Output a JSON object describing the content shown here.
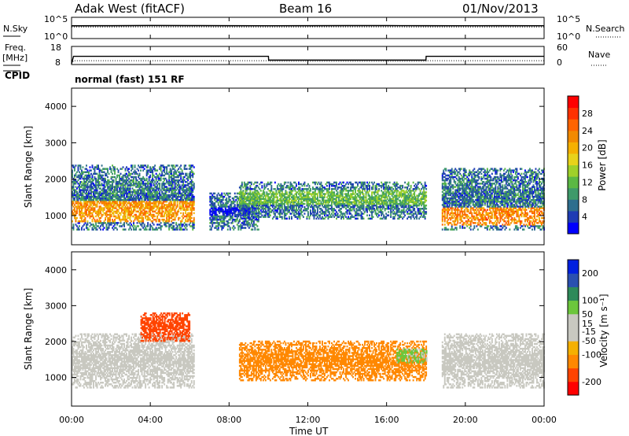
{
  "header": {
    "station": "Adak West (fitACF)",
    "beam": "Beam 16",
    "date": "01/Nov/2013"
  },
  "top_panels": {
    "nsky_label": "N.Sky",
    "nsky_ticks": [
      "10^5",
      "10^0"
    ],
    "nsearch_label": "N.Search",
    "nsearch_ticks": [
      "10^5",
      "10^0"
    ],
    "freq_label": "Freq.",
    "freq_unit": "[MHz]",
    "freq_ticks": [
      "18",
      "8"
    ],
    "nave_label": "Nave",
    "nave_ticks": [
      "60",
      "0"
    ],
    "cpid_label": "CPID",
    "cpid_text": "normal (fast) 151 RF"
  },
  "chart_data": [
    {
      "type": "line",
      "name": "noise-panel",
      "x": [
        0,
        2,
        4,
        6,
        8,
        10,
        12,
        14,
        16,
        18,
        20,
        22,
        24
      ],
      "series": [
        {
          "name": "N.Sky",
          "style": "solid",
          "values": [
            1200,
            1300,
            1500,
            1400,
            1300,
            1250,
            1300,
            1400,
            1350,
            1300,
            1250,
            1300,
            1250
          ]
        },
        {
          "name": "N.Search",
          "style": "dotted",
          "values": [
            600,
            600,
            650,
            620,
            600,
            600,
            610,
            630,
            620,
            600,
            600,
            610,
            600
          ]
        }
      ],
      "yscale": "log",
      "ylim": [
        1,
        100000
      ]
    },
    {
      "type": "line",
      "name": "freq-nave-panel",
      "x": [
        0,
        0.1,
        10,
        10.01,
        18,
        18.01,
        24
      ],
      "series": [
        {
          "name": "Freq.",
          "style": "solid",
          "values": [
            8,
            12.5,
            12.5,
            10.2,
            10.2,
            12.5,
            12.5
          ]
        },
        {
          "name": "Nave",
          "style": "dotted",
          "values": [
            0,
            11,
            11,
            9,
            9,
            11,
            11
          ]
        }
      ],
      "ylim_freq": [
        8,
        18
      ],
      "ylim_nave": [
        0,
        60
      ]
    },
    {
      "type": "heatmap",
      "name": "power-panel",
      "ylabel": "Slant Range [km]",
      "xlim": [
        0,
        24
      ],
      "ylim": [
        200,
        4500
      ],
      "yticks": [
        1000,
        2000,
        3000,
        4000
      ],
      "colorbar": {
        "label": "Power [dB]",
        "ticks": [
          4,
          8,
          12,
          16,
          20,
          24,
          28
        ],
        "range": [
          0,
          32
        ],
        "colors": [
          "#0000ff",
          "#1e3cb4",
          "#2e6e8e",
          "#3e9a6a",
          "#5bb844",
          "#9fd02a",
          "#e8d21a",
          "#f5b000",
          "#f28a00",
          "#ff6400",
          "#ff3200",
          "#ff0000"
        ]
      },
      "regions": [
        {
          "t": [
            0.0,
            6.2
          ],
          "r": [
            600,
            2400
          ],
          "peak_range": [
            800,
            1400
          ],
          "peak_power": 26
        },
        {
          "t": [
            7.0,
            9.5
          ],
          "r": [
            600,
            1600
          ],
          "peak_range": [
            1000,
            1200
          ],
          "peak_power": 6
        },
        {
          "t": [
            8.5,
            18.0
          ],
          "r": [
            900,
            1900
          ],
          "peak_range": [
            1300,
            1700
          ],
          "peak_power": 16
        },
        {
          "t": [
            18.8,
            24.0
          ],
          "r": [
            600,
            2300
          ],
          "peak_range": [
            700,
            1200
          ],
          "peak_power": 27
        }
      ]
    },
    {
      "type": "heatmap",
      "name": "velocity-panel",
      "ylabel": "Slant Range [km]",
      "xlabel": "Time UT",
      "xlim": [
        0,
        24
      ],
      "ylim": [
        200,
        4500
      ],
      "xticks": [
        "00:00",
        "04:00",
        "08:00",
        "12:00",
        "16:00",
        "20:00",
        "00:00"
      ],
      "yticks": [
        1000,
        2000,
        3000,
        4000
      ],
      "colorbar": {
        "label": "Velocity [m s⁻¹]",
        "ticks": [
          200,
          100,
          50,
          15,
          -15,
          -50,
          -100,
          -200
        ],
        "range": [
          -250,
          250
        ],
        "colors": [
          "#ff0000",
          "#ff4400",
          "#ff8800",
          "#f5b000",
          "#c8c8c0",
          "#c8c8c0",
          "#6cc63c",
          "#2e8a5a",
          "#2a50b0",
          "#0020e0"
        ]
      },
      "regions": [
        {
          "t": [
            0.0,
            6.2
          ],
          "r": [
            700,
            2200
          ],
          "velocity": 0
        },
        {
          "t": [
            3.5,
            6.0
          ],
          "r": [
            2000,
            2800
          ],
          "velocity": -180
        },
        {
          "t": [
            8.5,
            18.0
          ],
          "r": [
            900,
            2000
          ],
          "velocity": -120
        },
        {
          "t": [
            16.5,
            18.0
          ],
          "r": [
            1400,
            1800
          ],
          "velocity": 60
        },
        {
          "t": [
            18.8,
            24.0
          ],
          "r": [
            700,
            2200
          ],
          "velocity": 0
        }
      ]
    }
  ],
  "xaxis": {
    "ticks": [
      "00:00",
      "04:00",
      "08:00",
      "12:00",
      "16:00",
      "20:00",
      "00:00"
    ],
    "label": "Time UT"
  }
}
